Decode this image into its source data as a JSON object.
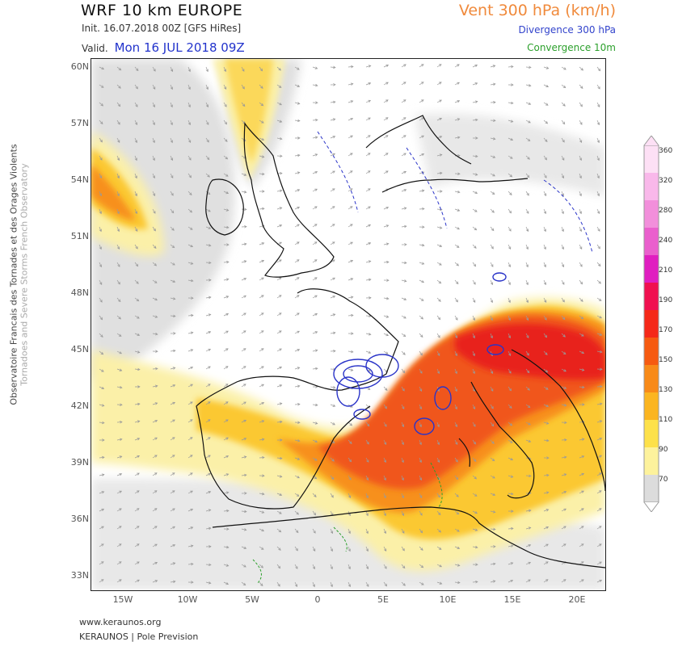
{
  "header": {
    "title": "WRF 10 km EUROPE",
    "parameter": "Vent 300 hPa (km/h)",
    "init": "Init.   16.07.2018 00Z [GFS HiRes]",
    "valid_label": "Valid.",
    "valid_date": "Mon 16 JUL 2018 09Z",
    "divergence_label": "Divergence 300 hPa",
    "convergence_label": "Convergence 10m"
  },
  "side_text": {
    "main": "Observatoire Francais des Tornades et des Orages Violents",
    "sub": "Tornadoes and Severe Storms French Observatory"
  },
  "axes": {
    "latitudes": [
      "60N",
      "57N",
      "54N",
      "51N",
      "48N",
      "45N",
      "42N",
      "39N",
      "36N",
      "33N"
    ],
    "longitudes": [
      "15W",
      "10W",
      "5W",
      "0",
      "5E",
      "10E",
      "15E",
      "20E"
    ]
  },
  "colorbar": {
    "labels": [
      "360",
      "320",
      "280",
      "240",
      "210",
      "190",
      "170",
      "150",
      "130",
      "110",
      "90",
      "70"
    ],
    "colors": [
      "#fde0f5",
      "#f9b8ea",
      "#f28fdb",
      "#ea5fcd",
      "#e01ec0",
      "#f01050",
      "#f52818",
      "#f65a10",
      "#f88a18",
      "#fbb520",
      "#fde14a",
      "#fdf29c",
      "#dcdcdc"
    ]
  },
  "map_colors": {
    "weak": "#e0e0e0",
    "light": "#fbf0a8",
    "medium": "#fbc830",
    "strong": "#f7901c",
    "very_strong": "#f0561a",
    "max": "#e8201e",
    "coast": "#111111",
    "divergence": "#2a34c8",
    "convergence": "#2ca02c"
  },
  "footer": {
    "url": "www.keraunos.org",
    "brand": "KERAUNOS | Pole Prevision"
  }
}
